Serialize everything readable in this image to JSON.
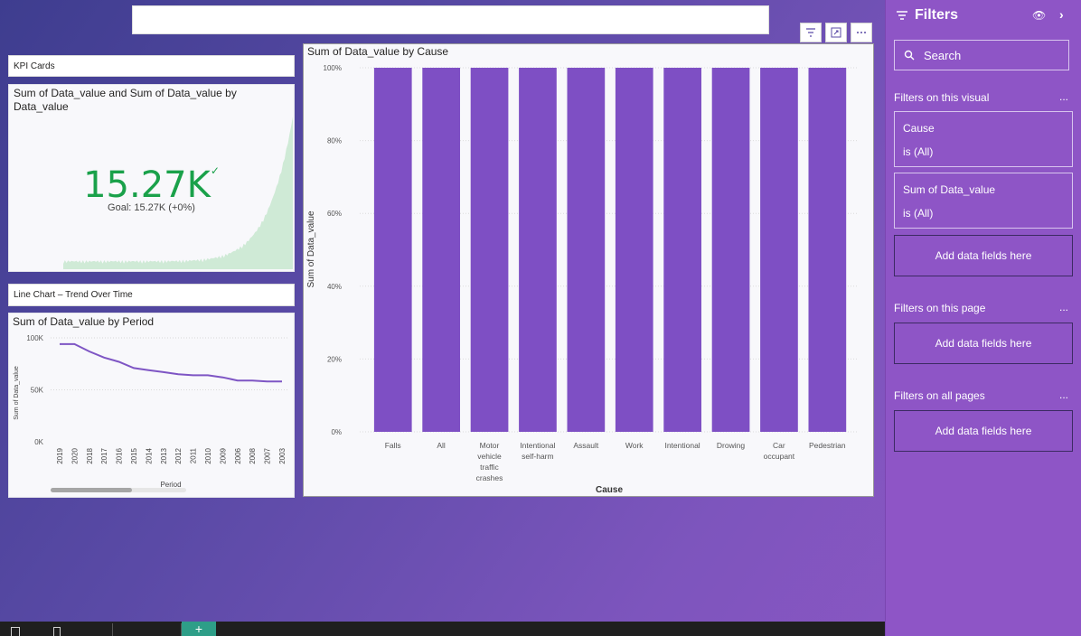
{
  "canvas": {
    "kpi_section_label": "KPI Cards",
    "line_section_label": "Line Chart – Trend Over Time"
  },
  "kpi": {
    "title": "Sum of Data_value and Sum of Data_value by Data_value",
    "value": "15.27K",
    "goal": "Goal: 15.27K (+0%)",
    "value_color": "#1aa14a",
    "check_icon": "check-icon"
  },
  "visual_header": {
    "icons": [
      "filter-icon",
      "focus-mode-icon",
      "more-options-icon"
    ]
  },
  "chart_data": [
    {
      "type": "line",
      "title": "Sum of Data_value by Period",
      "xlabel": "Period",
      "ylabel": "Sum of Data_value",
      "ylim": [
        0,
        100000
      ],
      "y_ticks": [
        "100K",
        "50K",
        "0K"
      ],
      "x": [
        "2019",
        "2020",
        "2018",
        "2017",
        "2016",
        "2015",
        "2014",
        "2013",
        "2012",
        "2011",
        "2010",
        "2009",
        "2006",
        "2008",
        "2007",
        "2003"
      ],
      "series": [
        {
          "values": [
            94000,
            94000,
            87000,
            81000,
            77000,
            71000,
            69000,
            67000,
            65000,
            64000,
            64000,
            62000,
            59000,
            59000,
            58000,
            58000
          ]
        }
      ],
      "color": "#7e55c4"
    },
    {
      "type": "bar",
      "title": "Sum of Data_value by Cause",
      "xlabel": "Cause",
      "ylabel": "Sum of Data_value",
      "ylim": [
        0,
        100
      ],
      "y_ticks": [
        "100%",
        "80%",
        "60%",
        "40%",
        "20%",
        "0%"
      ],
      "categories": [
        "Falls",
        "All",
        "Motor vehicle traffic crashes",
        "Intentional self-harm",
        "Assault",
        "Work",
        "Intentional",
        "Drowing",
        "Car occupant",
        "Pedestrian"
      ],
      "values": [
        100,
        100,
        100,
        100,
        100,
        100,
        100,
        100,
        100,
        100
      ],
      "color": "#7e4fc4",
      "grid": true
    }
  ],
  "filters": {
    "title": "Filters",
    "search_placeholder": "Search",
    "visual_section": "Filters on this visual",
    "page_section": "Filters on this page",
    "all_section": "Filters on all pages",
    "cards": [
      {
        "field": "Cause",
        "state": "is (All)"
      },
      {
        "field": "Sum of Data_value",
        "state": "is (All)"
      }
    ],
    "add_label": "Add data fields here",
    "more_glyph": "..."
  },
  "bottom": {
    "add_page": "+"
  }
}
